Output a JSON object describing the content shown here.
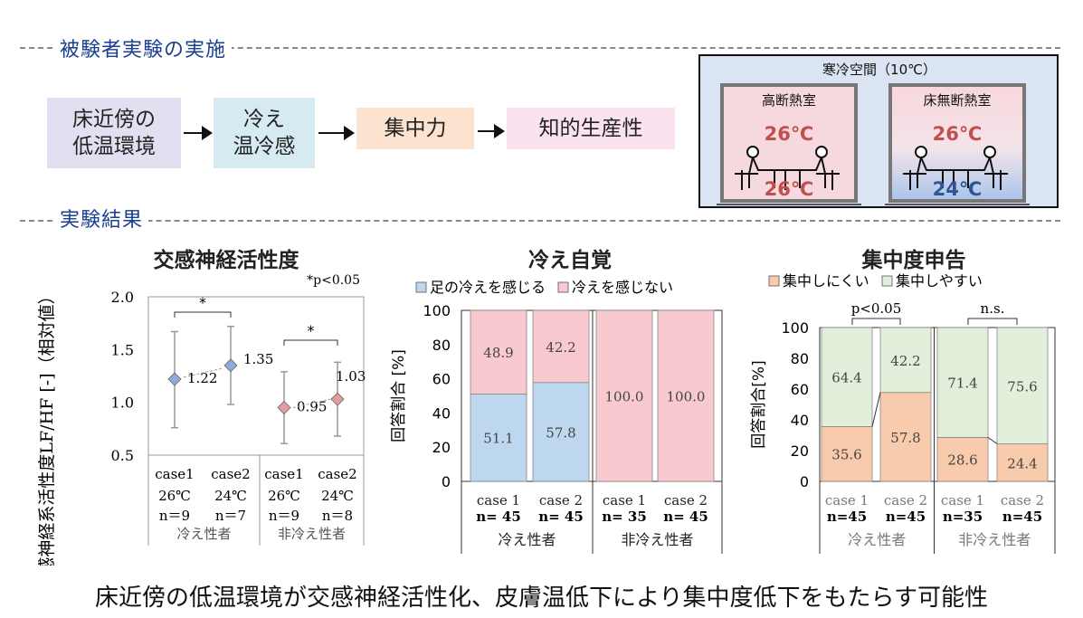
{
  "sections": {
    "experiment": "被験者実験の実施",
    "results": "実験結果"
  },
  "flow": [
    "床近傍の\n低温環境",
    "冷え\n温冷感",
    "集中力",
    "知的生産性"
  ],
  "diagram": {
    "title": "寒冷空間（10℃）",
    "room_a": {
      "label": "高断熱室",
      "temp_top": "26℃",
      "temp_bottom": "26℃"
    },
    "room_b": {
      "label": "床無断熱室",
      "temp_top": "26℃",
      "temp_bottom": "24℃"
    }
  },
  "conclusion": "床近傍の低温環境が交感神経活性化、皮膚温低下により集中度低下をもたらす可能性",
  "chart_data": [
    {
      "type": "scatter",
      "title": "交感神経活性度",
      "ylabel": "交感神経系活性度LF/HF [-]（相対値）",
      "ylim": [
        0.5,
        2.0
      ],
      "yticks": [
        "2.0",
        "1.5",
        "1.0",
        "0.5"
      ],
      "note": "*p<0.05",
      "significance": [
        "*",
        "*"
      ],
      "points": [
        {
          "case": "case1",
          "temp": "26℃",
          "n": "n＝9",
          "value": 1.22,
          "label": "1.22",
          "err_low": 0.76,
          "err_high": 1.67,
          "color": "#8faadc"
        },
        {
          "case": "case2",
          "temp": "24℃",
          "n": "n＝7",
          "value": 1.35,
          "label": "1.35",
          "err_low": 0.98,
          "err_high": 1.72,
          "color": "#8faadc"
        },
        {
          "case": "case1",
          "temp": "26℃",
          "n": "n＝9",
          "value": 0.95,
          "label": "0.95",
          "err_low": 0.61,
          "err_high": 1.29,
          "color": "#e49b9b"
        },
        {
          "case": "case2",
          "temp": "24℃",
          "n": "n＝8",
          "value": 1.03,
          "label": "1.03",
          "err_low": 0.68,
          "err_high": 1.38,
          "color": "#e49b9b"
        }
      ],
      "groups": [
        "冷え性者",
        "非冷え性者"
      ]
    },
    {
      "type": "bar",
      "title": "冷え自覚",
      "ylabel": "回答割合 [%]",
      "ylim": [
        0,
        100
      ],
      "yticks": [
        "100",
        "80",
        "60",
        "40",
        "20",
        "0"
      ],
      "legend": [
        "足の冷えを感じる",
        "冷えを感じない"
      ],
      "categories": [
        {
          "case": "case 1",
          "n": "n= 45"
        },
        {
          "case": "case 2",
          "n": "n= 45"
        },
        {
          "case": "case 1",
          "n": "n= 35"
        },
        {
          "case": "case 2",
          "n": "n= 45"
        }
      ],
      "groups": [
        "冷え性者",
        "非冷え性者"
      ],
      "series": [
        {
          "name": "足の冷えを感じる",
          "color": "#bdd7ee",
          "values": [
            51.1,
            57.8,
            0,
            0
          ],
          "labels": [
            "51.1",
            "57.8",
            "",
            ""
          ]
        },
        {
          "name": "冷えを感じない",
          "color": "#f8c9cf",
          "values": [
            48.9,
            42.2,
            100.0,
            100.0
          ],
          "labels": [
            "48.9",
            "42.2",
            "100.0",
            "100.0"
          ]
        }
      ]
    },
    {
      "type": "bar",
      "title": "集中度申告",
      "ylabel": "回答割合[%]",
      "ylim": [
        0,
        100
      ],
      "yticks": [
        "100",
        "80",
        "60",
        "40",
        "20",
        "0"
      ],
      "legend": [
        "集中しにくい",
        "集中しやすい"
      ],
      "categories": [
        {
          "case": "case 1",
          "n": "n=45"
        },
        {
          "case": "case 2",
          "n": "n=45"
        },
        {
          "case": "case 1",
          "n": "n=35"
        },
        {
          "case": "case 2",
          "n": "n=45"
        }
      ],
      "groups": [
        "冷え性者",
        "非冷え性者"
      ],
      "significance": [
        "p<0.05",
        "n.s."
      ],
      "series": [
        {
          "name": "集中しにくい",
          "color": "#f8cbad",
          "values": [
            35.6,
            57.8,
            28.6,
            24.4
          ],
          "labels": [
            "35.6",
            "57.8",
            "28.6",
            "24.4"
          ]
        },
        {
          "name": "集中しやすい",
          "color": "#e2efda",
          "values": [
            64.4,
            42.2,
            71.4,
            75.6
          ],
          "labels": [
            "64.4",
            "42.2",
            "71.4",
            "75.6"
          ]
        }
      ]
    }
  ]
}
